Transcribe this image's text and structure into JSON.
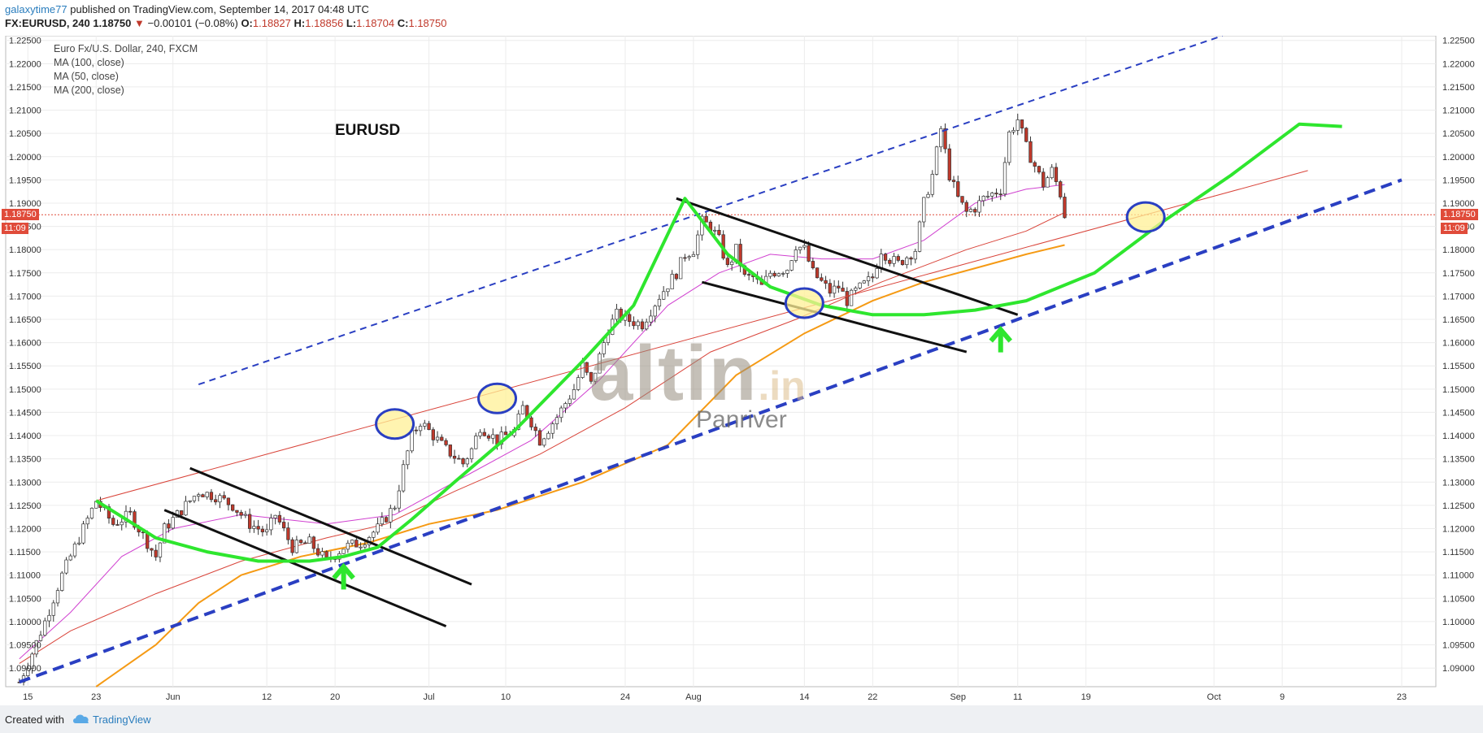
{
  "header": {
    "user": "galaxytime77",
    "published": "published on TradingView.com, September 14, 2017 04:48 UTC",
    "symbol": "FX:EURUSD, 240",
    "last": "1.18750",
    "change": "−0.00101 (−0.08%)",
    "o_label": "O:",
    "o": "1.18827",
    "h_label": "H:",
    "h": "1.18856",
    "l_label": "L:",
    "l": "1.18704",
    "c_label": "C:",
    "c": "1.18750"
  },
  "legend": {
    "title": "Euro Fx/U.S. Dollar, 240, FXCM",
    "ma100": "MA (100, close)",
    "ma50": "MA (50, close)",
    "ma200": "MA (200, close)"
  },
  "annotations": {
    "symbol_label": "EURUSD",
    "watermark": "altin",
    "watermark_suffix": ".in",
    "watermark_sub": "Panriver"
  },
  "price_tags": {
    "price": "1.18750",
    "time": "11:09"
  },
  "footer": {
    "created": "Created with",
    "brand": "TradingView"
  },
  "colors": {
    "up": "#3d3d3d",
    "down": "#c0392b",
    "ma100": "#d9443a",
    "ma50": "#d040d0",
    "ma200": "#f59a14",
    "curve": "#2ee62e",
    "channel": "#2a3fc2",
    "tag": "#e04b3a"
  },
  "chart_data": {
    "type": "candlestick",
    "title": "Euro Fx/U.S. Dollar, 240, FXCM",
    "ylim": [
      1.086,
      1.226
    ],
    "y_ticks": [
      "1.09000",
      "1.09500",
      "1.10000",
      "1.10500",
      "1.11000",
      "1.11500",
      "1.12000",
      "1.12500",
      "1.13000",
      "1.13500",
      "1.14000",
      "1.14500",
      "1.15000",
      "1.15500",
      "1.16000",
      "1.16500",
      "1.17000",
      "1.17500",
      "1.18000",
      "1.18500",
      "1.19000",
      "1.19500",
      "1.20000",
      "1.20500",
      "1.21000",
      "1.21500",
      "1.22000",
      "1.22500"
    ],
    "x_ticks": [
      {
        "label": "15",
        "day": 15
      },
      {
        "label": "23",
        "day": 23
      },
      {
        "label": "Jun",
        "day": 32
      },
      {
        "label": "12",
        "day": 43
      },
      {
        "label": "20",
        "day": 51
      },
      {
        "label": "Jul",
        "day": 62
      },
      {
        "label": "10",
        "day": 71
      },
      {
        "label": "24",
        "day": 85
      },
      {
        "label": "Aug",
        "day": 93
      },
      {
        "label": "14",
        "day": 106
      },
      {
        "label": "22",
        "day": 114
      },
      {
        "label": "Sep",
        "day": 124
      },
      {
        "label": "11",
        "day": 131
      },
      {
        "label": "19",
        "day": 139
      },
      {
        "label": "Oct",
        "day": 154
      },
      {
        "label": "9",
        "day": 162
      },
      {
        "label": "23",
        "day": 176
      }
    ],
    "price_path": [
      [
        14,
        1.087
      ],
      [
        15,
        1.091
      ],
      [
        17,
        1.1
      ],
      [
        19,
        1.11
      ],
      [
        21,
        1.118
      ],
      [
        22,
        1.122
      ],
      [
        23,
        1.126
      ],
      [
        25,
        1.121
      ],
      [
        27,
        1.123
      ],
      [
        29,
        1.117
      ],
      [
        30,
        1.114
      ],
      [
        31,
        1.12
      ],
      [
        33,
        1.124
      ],
      [
        35,
        1.128
      ],
      [
        37,
        1.127
      ],
      [
        39,
        1.125
      ],
      [
        41,
        1.121
      ],
      [
        43,
        1.119
      ],
      [
        44,
        1.123
      ],
      [
        46,
        1.116
      ],
      [
        48,
        1.117
      ],
      [
        50,
        1.113
      ],
      [
        52,
        1.116
      ],
      [
        54,
        1.117
      ],
      [
        56,
        1.12
      ],
      [
        58,
        1.125
      ],
      [
        59,
        1.133
      ],
      [
        60,
        1.14
      ],
      [
        61,
        1.143
      ],
      [
        62,
        1.141
      ],
      [
        64,
        1.137
      ],
      [
        66,
        1.134
      ],
      [
        67,
        1.137
      ],
      [
        68,
        1.142
      ],
      [
        70,
        1.139
      ],
      [
        72,
        1.141
      ],
      [
        73,
        1.146
      ],
      [
        74,
        1.143
      ],
      [
        75,
        1.139
      ],
      [
        77,
        1.144
      ],
      [
        79,
        1.15
      ],
      [
        80,
        1.155
      ],
      [
        81,
        1.151
      ],
      [
        82,
        1.157
      ],
      [
        83,
        1.163
      ],
      [
        84,
        1.166
      ],
      [
        85,
        1.165
      ],
      [
        87,
        1.164
      ],
      [
        89,
        1.17
      ],
      [
        91,
        1.175
      ],
      [
        92,
        1.179
      ],
      [
        93,
        1.18
      ],
      [
        94,
        1.186
      ],
      [
        95,
        1.185
      ],
      [
        96,
        1.182
      ],
      [
        97,
        1.176
      ],
      [
        98,
        1.18
      ],
      [
        99,
        1.174
      ],
      [
        100,
        1.174
      ],
      [
        101,
        1.172
      ],
      [
        102,
        1.175
      ],
      [
        104,
        1.176
      ],
      [
        105,
        1.181
      ],
      [
        106,
        1.18
      ],
      [
        107,
        1.175
      ],
      [
        109,
        1.171
      ],
      [
        110,
        1.172
      ],
      [
        111,
        1.169
      ],
      [
        112,
        1.171
      ],
      [
        114,
        1.174
      ],
      [
        115,
        1.18
      ],
      [
        116,
        1.178
      ],
      [
        117,
        1.177
      ],
      [
        119,
        1.18
      ],
      [
        120,
        1.19
      ],
      [
        121,
        1.196
      ],
      [
        122,
        1.206
      ],
      [
        123,
        1.196
      ],
      [
        124,
        1.191
      ],
      [
        125,
        1.188
      ],
      [
        126,
        1.189
      ],
      [
        127,
        1.191
      ],
      [
        129,
        1.193
      ],
      [
        130,
        1.205
      ],
      [
        131,
        1.208
      ],
      [
        132,
        1.202
      ],
      [
        133,
        1.198
      ],
      [
        134,
        1.194
      ],
      [
        135,
        1.197
      ],
      [
        136,
        1.192
      ],
      [
        136.5,
        1.1875
      ]
    ],
    "series": [
      {
        "name": "MA (100, close)",
        "points": [
          [
            14,
            1.091
          ],
          [
            20,
            1.098
          ],
          [
            30,
            1.106
          ],
          [
            40,
            1.113
          ],
          [
            50,
            1.118
          ],
          [
            57,
            1.121
          ],
          [
            65,
            1.128
          ],
          [
            75,
            1.136
          ],
          [
            85,
            1.146
          ],
          [
            95,
            1.158
          ],
          [
            105,
            1.165
          ],
          [
            115,
            1.173
          ],
          [
            125,
            1.18
          ],
          [
            132,
            1.184
          ],
          [
            136.5,
            1.188
          ]
        ]
      },
      {
        "name": "MA (50, close)",
        "points": [
          [
            14,
            1.092
          ],
          [
            20,
            1.102
          ],
          [
            26,
            1.114
          ],
          [
            32,
            1.12
          ],
          [
            40,
            1.123
          ],
          [
            50,
            1.121
          ],
          [
            58,
            1.123
          ],
          [
            66,
            1.131
          ],
          [
            74,
            1.139
          ],
          [
            82,
            1.152
          ],
          [
            90,
            1.168
          ],
          [
            96,
            1.175
          ],
          [
            102,
            1.179
          ],
          [
            108,
            1.178
          ],
          [
            114,
            1.178
          ],
          [
            120,
            1.182
          ],
          [
            126,
            1.19
          ],
          [
            132,
            1.193
          ],
          [
            136.5,
            1.194
          ]
        ]
      },
      {
        "name": "MA (200, close)",
        "points": [
          [
            23,
            1.086
          ],
          [
            30,
            1.095
          ],
          [
            35,
            1.104
          ],
          [
            40,
            1.11
          ],
          [
            47,
            1.114
          ],
          [
            55,
            1.117
          ],
          [
            62,
            1.121
          ],
          [
            70,
            1.124
          ],
          [
            80,
            1.13
          ],
          [
            90,
            1.138
          ],
          [
            98,
            1.153
          ],
          [
            106,
            1.162
          ],
          [
            114,
            1.169
          ],
          [
            120,
            1.173
          ],
          [
            126,
            1.176
          ],
          [
            132,
            1.179
          ],
          [
            136.5,
            1.181
          ]
        ]
      }
    ],
    "drawings": {
      "green_curve": [
        [
          23,
          1.126
        ],
        [
          30,
          1.118
        ],
        [
          36,
          1.115
        ],
        [
          42,
          1.113
        ],
        [
          48,
          1.113
        ],
        [
          52,
          1.114
        ],
        [
          56,
          1.116
        ],
        [
          60,
          1.122
        ],
        [
          65,
          1.13
        ],
        [
          72,
          1.141
        ],
        [
          80,
          1.156
        ],
        [
          86,
          1.168
        ],
        [
          92,
          1.191
        ],
        [
          97,
          1.179
        ],
        [
          102,
          1.172
        ],
        [
          108,
          1.168
        ],
        [
          114,
          1.166
        ],
        [
          120,
          1.166
        ],
        [
          126,
          1.167
        ],
        [
          132,
          1.169
        ],
        [
          140,
          1.175
        ],
        [
          148,
          1.186
        ],
        [
          156,
          1.196
        ],
        [
          164,
          1.207
        ],
        [
          169,
          1.2065
        ]
      ],
      "channel_upper_dashed": [
        [
          35,
          1.151
        ],
        [
          155,
          1.226
        ]
      ],
      "channel_lower_dashed": [
        [
          14,
          1.087
        ],
        [
          176,
          1.195
        ]
      ],
      "red_trendline": [
        [
          23,
          1.126
        ],
        [
          165,
          1.197
        ]
      ],
      "black_lines": [
        [
          [
            34,
            1.133
          ],
          [
            67,
            1.108
          ]
        ],
        [
          [
            31,
            1.124
          ],
          [
            64,
            1.099
          ]
        ],
        [
          [
            91,
            1.191
          ],
          [
            131,
            1.166
          ]
        ],
        [
          [
            94,
            1.173
          ],
          [
            125,
            1.158
          ]
        ]
      ],
      "circles": [
        [
          58,
          1.1425
        ],
        [
          70,
          1.148
        ],
        [
          106,
          1.1685
        ],
        [
          146,
          1.187
        ]
      ],
      "up_arrows": [
        [
          52,
          1.109
        ],
        [
          129,
          1.16
        ]
      ]
    }
  }
}
